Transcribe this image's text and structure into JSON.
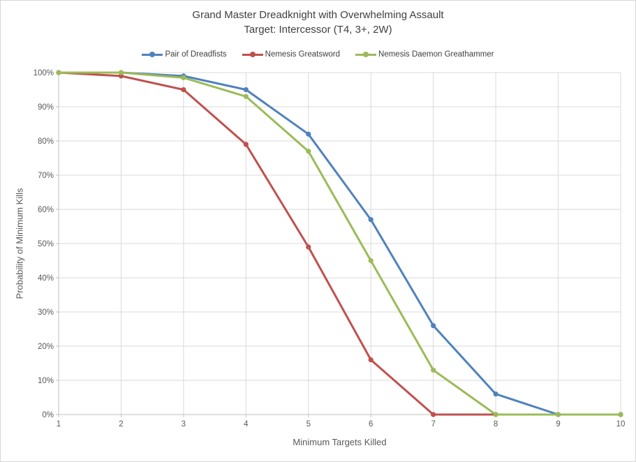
{
  "chart_data": {
    "type": "line",
    "title": "Grand Master Dreadknight with Overwhelming Assault",
    "subtitle": "Target: Intercessor (T4, 3+, 2W)",
    "xlabel": "Minimum Targets Killed",
    "ylabel": "Probability of Minimum Kills",
    "x": [
      1,
      2,
      3,
      4,
      5,
      6,
      7,
      8,
      9,
      10
    ],
    "xlim": [
      1,
      10
    ],
    "ylim": [
      0,
      100
    ],
    "ytick_step": 10,
    "ytick_suffix": "%",
    "grid": true,
    "legend_position": "top",
    "marker": "circle",
    "series": [
      {
        "name": "Pair of Dreadfists",
        "color": "#4F81BD",
        "values": [
          100,
          100,
          99,
          95,
          82,
          57,
          26,
          6,
          0,
          0
        ]
      },
      {
        "name": "Nemesis Greatsword",
        "color": "#C0504D",
        "values": [
          100,
          99,
          95,
          79,
          49,
          16,
          0,
          0,
          0,
          0
        ]
      },
      {
        "name": "Nemesis Daemon Greathammer",
        "color": "#9BBB59",
        "values": [
          100,
          100,
          98.5,
          93,
          77,
          45,
          13,
          0,
          0,
          0
        ]
      }
    ]
  },
  "colors": {
    "gridline": "#D9D9D9",
    "axis_line": "#BFBFBF",
    "tick_text": "#595959",
    "title_text": "#3F3F3F",
    "background": "#FFFFFF"
  }
}
